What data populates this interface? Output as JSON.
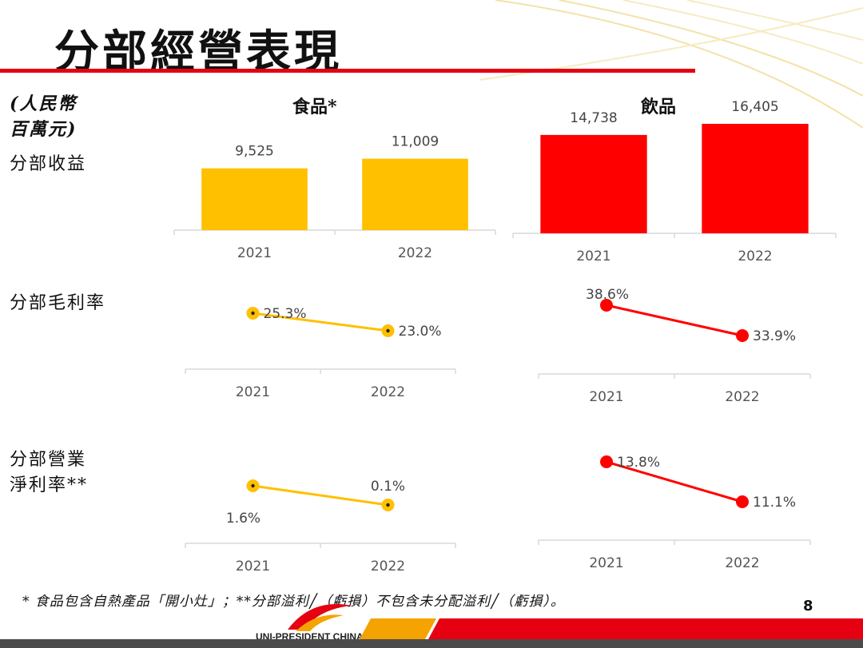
{
  "title": "分部經營表現",
  "unit_label": [
    "(人民幣",
    "百萬元)"
  ],
  "columns": {
    "food": "食品*",
    "beverage": "飲品"
  },
  "row_labels": {
    "revenue": "分部收益",
    "gross_margin": "分部毛利率",
    "net_margin": [
      "分部營業",
      "淨利率**"
    ]
  },
  "footnote": "* 食品包含自熱產品「開小灶」；**分部溢利╱（虧損）不包含未分配溢利╱（虧損）。",
  "page_number": "8",
  "logo_text": "UNI-PRESIDENT CHINA",
  "colors": {
    "food": "#ffc000",
    "beverage": "#ff0000",
    "accent": "#e50012"
  },
  "chart_data": [
    {
      "type": "bar",
      "categories": [
        "2021",
        "2022"
      ],
      "values": [
        9525,
        11009
      ],
      "labels": [
        "9,525",
        "11,009"
      ],
      "color": "#ffc000"
    },
    {
      "type": "bar",
      "categories": [
        "2021",
        "2022"
      ],
      "values": [
        14738,
        16405
      ],
      "labels": [
        "14,738",
        "16,405"
      ],
      "color": "#ff0000"
    },
    {
      "type": "line",
      "categories": [
        "2021",
        "2022"
      ],
      "values": [
        25.3,
        23.0
      ],
      "labels": [
        "25.3%",
        "23.0%"
      ],
      "color": "#ffc000"
    },
    {
      "type": "line",
      "categories": [
        "2021",
        "2022"
      ],
      "values": [
        38.6,
        33.9
      ],
      "labels": [
        "38.6%",
        "33.9%"
      ],
      "color": "#ff0000"
    },
    {
      "type": "line",
      "categories": [
        "2021",
        "2022"
      ],
      "values": [
        1.6,
        0.1
      ],
      "labels": [
        "1.6%",
        "0.1%"
      ],
      "color": "#ffc000"
    },
    {
      "type": "line",
      "categories": [
        "2021",
        "2022"
      ],
      "values": [
        13.8,
        11.1
      ],
      "labels": [
        "13.8%",
        "11.1%"
      ],
      "color": "#ff0000"
    }
  ]
}
